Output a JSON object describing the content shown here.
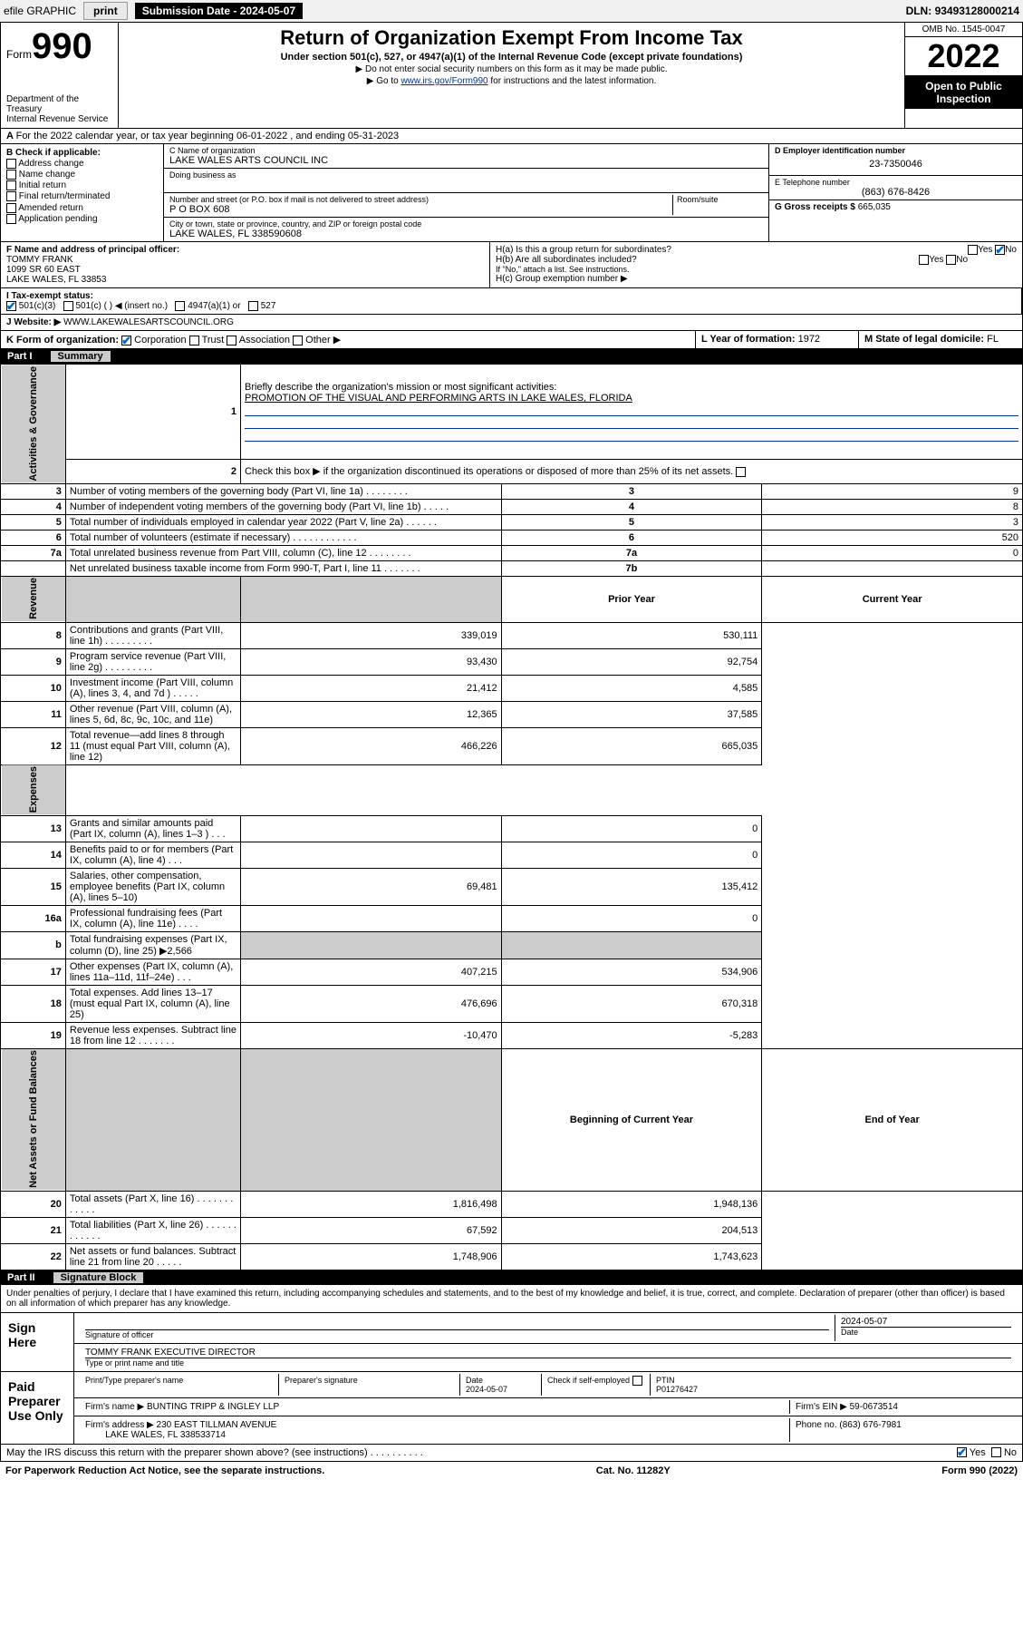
{
  "topbar": {
    "efile": "efile GRAPHIC",
    "print": "print",
    "subdate_label": "Submission Date - ",
    "subdate": "2024-05-07",
    "dln_label": "DLN: ",
    "dln": "93493128000214"
  },
  "header": {
    "form_label": "Form",
    "form_number": "990",
    "dept": "Department of the Treasury",
    "irs": "Internal Revenue Service",
    "title": "Return of Organization Exempt From Income Tax",
    "sub1": "Under section 501(c), 527, or 4947(a)(1) of the Internal Revenue Code (except private foundations)",
    "sub2": "▶ Do not enter social security numbers on this form as it may be made public.",
    "sub3_pre": "▶ Go to ",
    "sub3_link": "www.irs.gov/Form990",
    "sub3_post": " for instructions and the latest information.",
    "omb": "OMB No. 1545-0047",
    "year": "2022",
    "open": "Open to Public Inspection"
  },
  "line_a": "For the 2022 calendar year, or tax year beginning 06-01-2022    , and ending 05-31-2023",
  "col_b": {
    "label": "B Check if applicable:",
    "items": [
      "Address change",
      "Name change",
      "Initial return",
      "Final return/terminated",
      "Amended return",
      "Application pending"
    ]
  },
  "box_c": {
    "name_label": "C Name of organization",
    "name": "LAKE WALES ARTS COUNCIL INC",
    "dba_label": "Doing business as",
    "addr_label": "Number and street (or P.O. box if mail is not delivered to street address)",
    "room_label": "Room/suite",
    "addr": "P O BOX 608",
    "city_label": "City or town, state or province, country, and ZIP or foreign postal code",
    "city": "LAKE WALES, FL  338590608"
  },
  "box_d": {
    "label": "D Employer identification number",
    "val": "23-7350046"
  },
  "box_e": {
    "label": "E Telephone number",
    "val": "(863) 676-8426"
  },
  "box_g": {
    "label": "G Gross receipts $",
    "val": "665,035"
  },
  "box_f": {
    "label": "F Name and address of principal officer:",
    "name": "TOMMY FRANK",
    "addr1": "1099 SR 60 EAST",
    "addr2": "LAKE WALES, FL  33853"
  },
  "box_h": {
    "ha": "H(a)  Is this a group return for subordinates?",
    "hb": "H(b)  Are all subordinates included?",
    "hb_note": "If \"No,\" attach a list. See instructions.",
    "hc": "H(c)  Group exemption number ▶",
    "yes": "Yes",
    "no": "No"
  },
  "box_i": {
    "label": "I    Tax-exempt status:",
    "opts": [
      "501(c)(3)",
      "501(c) (  ) ◀ (insert no.)",
      "4947(a)(1) or",
      "527"
    ]
  },
  "box_j": {
    "label": "J   Website: ▶",
    "val": "WWW.LAKEWALESARTSCOUNCIL.ORG"
  },
  "box_k": {
    "label": "K Form of organization:",
    "opts": [
      "Corporation",
      "Trust",
      "Association",
      "Other ▶"
    ]
  },
  "box_l": {
    "label": "L Year of formation:",
    "val": "1972"
  },
  "box_m": {
    "label": "M State of legal domicile:",
    "val": "FL"
  },
  "part1": {
    "label": "Part I",
    "title": "Summary"
  },
  "summary": {
    "q1": "Briefly describe the organization's mission or most significant activities:",
    "mission": "PROMOTION OF THE VISUAL AND PERFORMING ARTS IN LAKE WALES, FLORIDA",
    "q2": "Check this box ▶        if the organization discontinued its operations or disposed of more than 25% of its net assets.",
    "sections": {
      "gov": "Activities & Governance",
      "rev": "Revenue",
      "exp": "Expenses",
      "net": "Net Assets or Fund Balances"
    },
    "col_prior": "Prior Year",
    "col_curr": "Current Year",
    "col_begin": "Beginning of Current Year",
    "col_end": "End of Year",
    "rows_gov": [
      {
        "n": "3",
        "t": "Number of voting members of the governing body (Part VI, line 1a)  .   .   .   .   .   .   .   .",
        "b": "3",
        "v": "9"
      },
      {
        "n": "4",
        "t": "Number of independent voting members of the governing body (Part VI, line 1b)   .   .   .   .   .",
        "b": "4",
        "v": "8"
      },
      {
        "n": "5",
        "t": "Total number of individuals employed in calendar year 2022 (Part V, line 2a)   .   .   .   .   .   .",
        "b": "5",
        "v": "3"
      },
      {
        "n": "6",
        "t": "Total number of volunteers (estimate if necessary)  .   .   .   .   .   .   .   .   .   .   .   .",
        "b": "6",
        "v": "520"
      },
      {
        "n": "7a",
        "t": "Total unrelated business revenue from Part VIII, column (C), line 12   .   .   .   .   .   .   .   .",
        "b": "7a",
        "v": "0"
      },
      {
        "n": "",
        "t": "Net unrelated business taxable income from Form 990-T, Part I, line 11   .   .   .   .   .   .   .",
        "b": "7b",
        "v": ""
      }
    ],
    "rows_rev": [
      {
        "n": "8",
        "t": "Contributions and grants (Part VIII, line 1h)   .   .   .   .   .   .   .   .   .",
        "p": "339,019",
        "c": "530,111"
      },
      {
        "n": "9",
        "t": "Program service revenue (Part VIII, line 2g)   .   .   .   .   .   .   .   .   .",
        "p": "93,430",
        "c": "92,754"
      },
      {
        "n": "10",
        "t": "Investment income (Part VIII, column (A), lines 3, 4, and 7d )   .   .   .   .   .",
        "p": "21,412",
        "c": "4,585"
      },
      {
        "n": "11",
        "t": "Other revenue (Part VIII, column (A), lines 5, 6d, 8c, 9c, 10c, and 11e)",
        "p": "12,365",
        "c": "37,585"
      },
      {
        "n": "12",
        "t": "Total revenue—add lines 8 through 11 (must equal Part VIII, column (A), line 12)",
        "p": "466,226",
        "c": "665,035"
      }
    ],
    "rows_exp": [
      {
        "n": "13",
        "t": "Grants and similar amounts paid (Part IX, column (A), lines 1–3 )   .   .   .",
        "p": "",
        "c": "0"
      },
      {
        "n": "14",
        "t": "Benefits paid to or for members (Part IX, column (A), line 4)   .   .   .",
        "p": "",
        "c": "0"
      },
      {
        "n": "15",
        "t": "Salaries, other compensation, employee benefits (Part IX, column (A), lines 5–10)",
        "p": "69,481",
        "c": "135,412"
      },
      {
        "n": "16a",
        "t": "Professional fundraising fees (Part IX, column (A), line 11e)   .   .   .   .",
        "p": "",
        "c": "0"
      },
      {
        "n": "b",
        "t": "Total fundraising expenses (Part IX, column (D), line 25) ▶2,566",
        "p": "—",
        "c": "—"
      },
      {
        "n": "17",
        "t": "Other expenses (Part IX, column (A), lines 11a–11d, 11f–24e)   .   .   .",
        "p": "407,215",
        "c": "534,906"
      },
      {
        "n": "18",
        "t": "Total expenses. Add lines 13–17 (must equal Part IX, column (A), line 25)",
        "p": "476,696",
        "c": "670,318"
      },
      {
        "n": "19",
        "t": "Revenue less expenses. Subtract line 18 from line 12   .   .   .   .   .   .   .",
        "p": "-10,470",
        "c": "-5,283"
      }
    ],
    "rows_net": [
      {
        "n": "20",
        "t": "Total assets (Part X, line 16)   .   .   .   .   .   .   .   .   .   .   .   .",
        "p": "1,816,498",
        "c": "1,948,136"
      },
      {
        "n": "21",
        "t": "Total liabilities (Part X, line 26)   .   .   .   .   .   .   .   .   .   .   .   .",
        "p": "67,592",
        "c": "204,513"
      },
      {
        "n": "22",
        "t": "Net assets or fund balances. Subtract line 21 from line 20   .   .   .   .   .",
        "p": "1,748,906",
        "c": "1,743,623"
      }
    ]
  },
  "part2": {
    "label": "Part II",
    "title": "Signature Block"
  },
  "sig": {
    "penalty": "Under penalties of perjury, I declare that I have examined this return, including accompanying schedules and statements, and to the best of my knowledge and belief, it is true, correct, and complete. Declaration of preparer (other than officer) is based on all information of which preparer has any knowledge.",
    "sign_here": "Sign Here",
    "sig_officer": "Signature of officer",
    "sig_date": "2024-05-07",
    "date_label": "Date",
    "officer_name": "TOMMY FRANK  EXECUTIVE DIRECTOR",
    "name_title": "Type or print name and title",
    "paid": "Paid Preparer Use Only",
    "prep_name_label": "Print/Type preparer's name",
    "prep_sig_label": "Preparer's signature",
    "prep_date": "2024-05-07",
    "check_if": "Check         if self-employed",
    "ptin_label": "PTIN",
    "ptin": "P01276427",
    "firm_name_label": "Firm's name      ▶",
    "firm_name": "BUNTING TRIPP & INGLEY LLP",
    "firm_ein_label": "Firm's EIN ▶",
    "firm_ein": "59-0673514",
    "firm_addr_label": "Firm's address ▶",
    "firm_addr1": "230 EAST TILLMAN AVENUE",
    "firm_addr2": "LAKE WALES, FL  338533714",
    "phone_label": "Phone no.",
    "phone": "(863) 676-7981",
    "discuss": "May the IRS discuss this return with the preparer shown above? (see instructions)   .   .   .   .   .   .   .   .   .   ."
  },
  "footer": {
    "pra": "For Paperwork Reduction Act Notice, see the separate instructions.",
    "cat": "Cat. No. 11282Y",
    "form": "Form 990 (2022)"
  }
}
